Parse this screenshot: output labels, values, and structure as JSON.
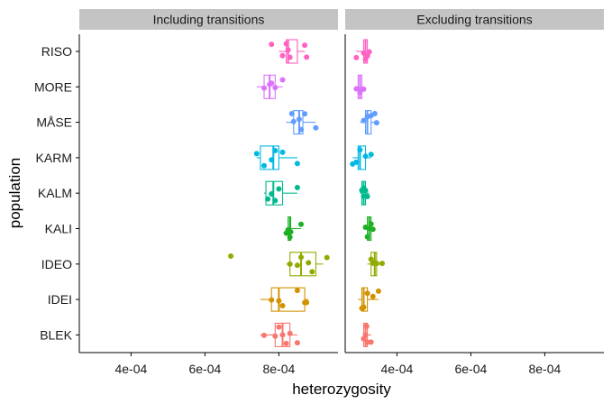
{
  "chart_data": {
    "type": "boxplot",
    "xlabel": "heterozygosity",
    "ylabel": "population",
    "xlim": [
      0.00026,
      0.00096
    ],
    "x_ticks": [
      0.0004,
      0.0006,
      0.0008
    ],
    "x_tick_labels": [
      "4e-04",
      "6e-04",
      "8e-04"
    ],
    "categories": [
      "RISO",
      "MORE",
      "MÅSE",
      "KARM",
      "KALM",
      "KALI",
      "IDEO",
      "IDEI",
      "BLEK"
    ],
    "colors": {
      "RISO": "#FF61C3",
      "MORE": "#DB72FB",
      "MÅSE": "#619CFF",
      "KARM": "#00B9E3",
      "KALM": "#00BA8E",
      "KALI": "#1EB024",
      "IDEO": "#93AA00",
      "IDEI": "#D39200",
      "BLEK": "#F8766D"
    },
    "grid": false,
    "legend": "none",
    "facets": [
      {
        "title": "Including transitions",
        "boxes": {
          "RISO": {
            "q1": 0.00082,
            "median": 0.000825,
            "q3": 0.00085,
            "whisker_low": 0.0008,
            "whisker_high": 0.00087
          },
          "MORE": {
            "q1": 0.00076,
            "median": 0.000775,
            "q3": 0.00079,
            "whisker_low": 0.00074,
            "whisker_high": 0.00081
          },
          "MÅSE": {
            "q1": 0.00084,
            "median": 0.000855,
            "q3": 0.000865,
            "whisker_low": 0.00082,
            "whisker_high": 0.0009
          },
          "KARM": {
            "q1": 0.00075,
            "median": 0.000785,
            "q3": 0.0008,
            "whisker_low": 0.00074,
            "whisker_high": 0.00085
          },
          "KALM": {
            "q1": 0.000765,
            "median": 0.000785,
            "q3": 0.00081,
            "whisker_low": 0.00076,
            "whisker_high": 0.00085
          },
          "KALI": {
            "q1": 0.000825,
            "median": 0.00083,
            "q3": 0.000832,
            "whisker_low": 0.00082,
            "whisker_high": 0.00086
          },
          "IDEO": {
            "q1": 0.00083,
            "median": 0.00086,
            "q3": 0.0009,
            "whisker_low": 0.00082,
            "whisker_high": 0.00092
          },
          "IDEI": {
            "q1": 0.00078,
            "median": 0.0008,
            "q3": 0.00087,
            "whisker_low": 0.00075,
            "whisker_high": 0.00088
          },
          "BLEK": {
            "q1": 0.00079,
            "median": 0.00081,
            "q3": 0.00083,
            "whisker_low": 0.00075,
            "whisker_high": 0.00085
          }
        },
        "points": {
          "RISO": [
            0.00081,
            0.00082,
            0.000825,
            0.00083,
            0.00087,
            0.000875,
            0.00078
          ],
          "MORE": [
            0.00076,
            0.000775,
            0.00078,
            0.00079,
            0.00081
          ],
          "MÅSE": [
            0.00084,
            0.000855,
            0.00086,
            0.00087,
            0.0009,
            0.000835
          ],
          "KARM": [
            0.00074,
            0.00076,
            0.00078,
            0.00079,
            0.00081,
            0.00085
          ],
          "KALM": [
            0.00077,
            0.00078,
            0.00079,
            0.0008,
            0.00085
          ],
          "KALI": [
            0.00082,
            0.000825,
            0.000828,
            0.00083,
            0.000832,
            0.00086
          ],
          "IDEO": [
            0.00083,
            0.00085,
            0.00086,
            0.00088,
            0.00089,
            0.00093,
            0.00067
          ],
          "IDEI": [
            0.00078,
            0.0008,
            0.00081,
            0.00085,
            0.00087,
            0.000875
          ],
          "BLEK": [
            0.00076,
            0.00079,
            0.0008,
            0.00081,
            0.00082,
            0.00083,
            0.00085
          ]
        }
      },
      {
        "title": "Excluding transitions",
        "boxes": {
          "RISO": {
            "q1": 0.00031,
            "median": 0.000315,
            "q3": 0.00032,
            "whisker_low": 0.00029,
            "whisker_high": 0.000325
          },
          "MORE": {
            "q1": 0.000295,
            "median": 0.0003,
            "q3": 0.000305,
            "whisker_low": 0.00029,
            "whisker_high": 0.00031
          },
          "MÅSE": {
            "q1": 0.000315,
            "median": 0.00032,
            "q3": 0.00033,
            "whisker_low": 0.0003,
            "whisker_high": 0.000345
          },
          "KARM": {
            "q1": 0.000295,
            "median": 0.0003,
            "q3": 0.000315,
            "whisker_low": 0.00028,
            "whisker_high": 0.00033
          },
          "KALM": {
            "q1": 0.000305,
            "median": 0.00031,
            "q3": 0.000315,
            "whisker_low": 0.0003,
            "whisker_high": 0.000325
          },
          "KALI": {
            "q1": 0.00032,
            "median": 0.000325,
            "q3": 0.00033,
            "whisker_low": 0.000315,
            "whisker_high": 0.00034
          },
          "IDEO": {
            "q1": 0.00033,
            "median": 0.00034,
            "q3": 0.000345,
            "whisker_low": 0.00032,
            "whisker_high": 0.00036
          },
          "IDEI": {
            "q1": 0.000305,
            "median": 0.00031,
            "q3": 0.00032,
            "whisker_low": 0.000295,
            "whisker_high": 0.00035
          },
          "BLEK": {
            "q1": 0.00031,
            "median": 0.000315,
            "q3": 0.00032,
            "whisker_low": 0.00031,
            "whisker_high": 0.00033
          }
        },
        "points": {
          "RISO": [
            0.00031,
            0.000315,
            0.00032,
            0.00032,
            0.000325,
            0.00029
          ],
          "MORE": [
            0.00029,
            0.0003,
            0.0003,
            0.00031
          ],
          "MÅSE": [
            0.00031,
            0.00032,
            0.00033,
            0.00034,
            0.000345
          ],
          "KARM": [
            0.00028,
            0.00029,
            0.0003,
            0.000315,
            0.00033
          ],
          "KALM": [
            0.000305,
            0.00031,
            0.00031,
            0.000315,
            0.00032
          ],
          "KALI": [
            0.000315,
            0.00032,
            0.000325,
            0.00033,
            0.000335
          ],
          "IDEO": [
            0.00033,
            0.000335,
            0.00034,
            0.000345,
            0.00036
          ],
          "IDEI": [
            0.000305,
            0.00031,
            0.00032,
            0.000335,
            0.00035
          ],
          "BLEK": [
            0.00031,
            0.000315,
            0.000318,
            0.00032,
            0.00033
          ]
        }
      }
    ]
  }
}
